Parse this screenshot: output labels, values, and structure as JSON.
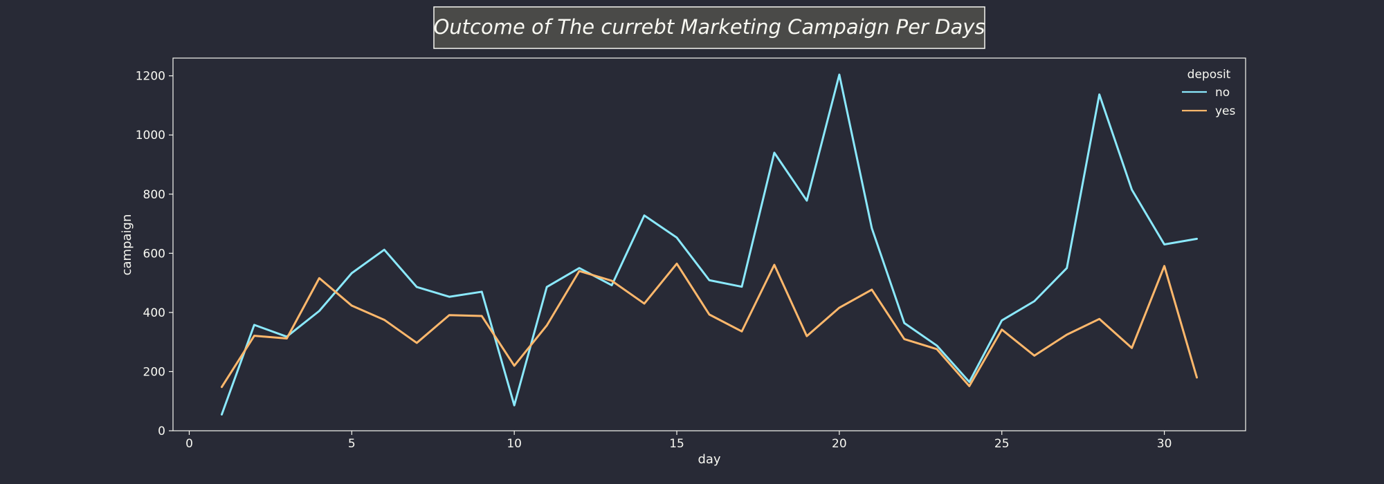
{
  "chart_data": {
    "type": "line",
    "title": "Outcome of The currebt Marketing Campaign Per Days",
    "xlabel": "day",
    "ylabel": "campaign",
    "xlim": [
      -0.5,
      32.5
    ],
    "ylim": [
      0,
      1260
    ],
    "xticks": [
      0,
      5,
      10,
      15,
      20,
      25,
      30
    ],
    "yticks": [
      0,
      200,
      400,
      600,
      800,
      1000,
      1200
    ],
    "grid": false,
    "legend": {
      "title": "deposit",
      "placement": "top-right"
    },
    "x": [
      1,
      2,
      3,
      4,
      5,
      6,
      7,
      8,
      9,
      10,
      11,
      12,
      13,
      14,
      15,
      16,
      17,
      18,
      19,
      20,
      21,
      22,
      23,
      24,
      25,
      26,
      27,
      28,
      29,
      30,
      31
    ],
    "series": [
      {
        "name": "no",
        "color": "#8be9fd",
        "values": [
          55,
          358,
          318,
          405,
          533,
          612,
          486,
          453,
          470,
          86,
          486,
          550,
          492,
          728,
          653,
          509,
          487,
          940,
          778,
          1204,
          685,
          364,
          288,
          165,
          373,
          438,
          550,
          1137,
          815,
          630,
          649
        ]
      },
      {
        "name": "yes",
        "color": "#ffb86c",
        "values": [
          148,
          321,
          312,
          516,
          423,
          375,
          297,
          391,
          388,
          220,
          356,
          540,
          507,
          430,
          565,
          393,
          336,
          561,
          320,
          416,
          477,
          310,
          276,
          151,
          342,
          254,
          325,
          378,
          280,
          557,
          180
        ]
      }
    ]
  }
}
